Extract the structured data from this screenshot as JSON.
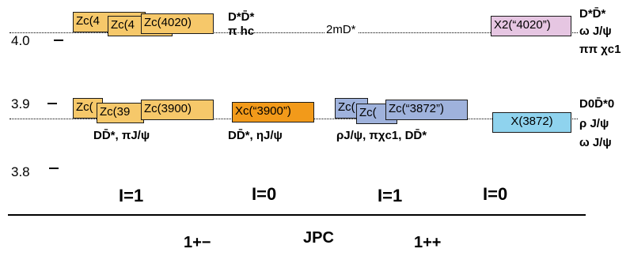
{
  "axis": {
    "ticks": [
      "4.0",
      "3.9",
      "3.8"
    ]
  },
  "upper": {
    "zc_yellow": [
      "Zc(4",
      "Zc(4",
      "Zc(4020)"
    ],
    "decay_left": [
      "D*D̄*",
      "π hc"
    ],
    "threshold": "2mD*",
    "x2": "X2(“4020”)",
    "decay_right": [
      "D*D̄*",
      "ω J/ψ",
      "ππ χc1"
    ]
  },
  "lower": {
    "zc_yellow": [
      "Zc(",
      "Zc(39",
      "Zc(3900)"
    ],
    "decay_zc_yellow": "DD̄*, πJ/ψ",
    "xc": "Xc(“3900”)",
    "decay_xc": "DD̄*, ηJ/ψ",
    "zc_blue": [
      "Zc(",
      "Zc(",
      "Zc(“3872”)"
    ],
    "decay_zc_blue": "ρJ/ψ, πχc1, DD̄*",
    "x3872": "X(3872)",
    "decay_right": [
      "D0D̄*0",
      "ρ J/ψ",
      "ω J/ψ"
    ]
  },
  "isospin": [
    "I=1",
    "I=0",
    "I=1",
    "I=0"
  ],
  "jpc": {
    "left": "1+−",
    "center": "JPC",
    "right": "1++"
  },
  "colors": {
    "yellow": "#f6c86a",
    "orange": "#f29a1a",
    "blue": "#9fb2dc",
    "cyan": "#8fd3ee",
    "pink": "#e6c6e2"
  }
}
